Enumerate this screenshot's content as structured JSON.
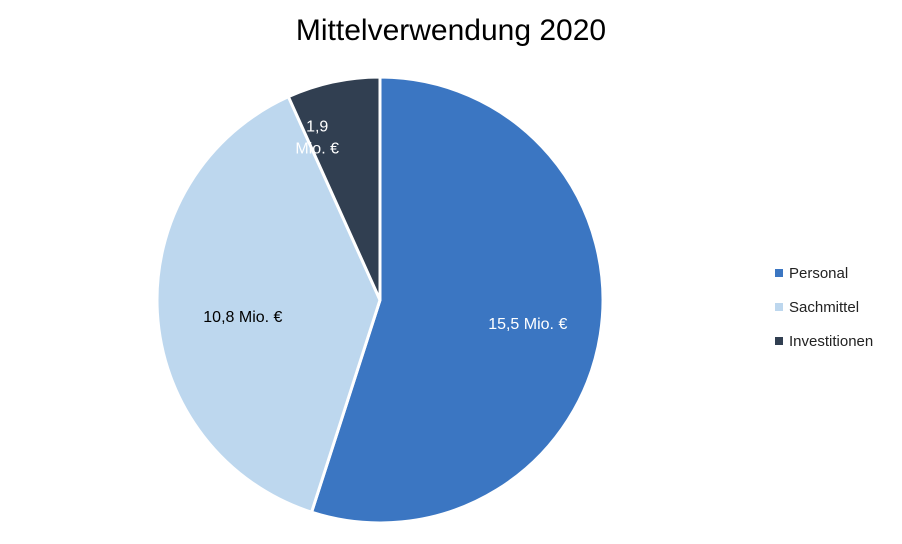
{
  "chart_data": {
    "type": "pie",
    "title": "Mittelverwendung 2020",
    "series": [
      {
        "name": "Personal",
        "value": 15.5,
        "label": "15,5 Mio. €",
        "color": "#3b76c2",
        "label_color": "#ffffff"
      },
      {
        "name": "Sachmittel",
        "value": 10.8,
        "label": "10,8 Mio. €",
        "color": "#bdd7ee",
        "label_color": "#000000"
      },
      {
        "name": "Investitionen",
        "value": 1.9,
        "label": "1,9 Mio. €",
        "label_lines": [
          "1,9",
          "Mio. €"
        ],
        "color": "#313f51",
        "label_color": "#ffffff"
      }
    ],
    "legend_position": "right"
  }
}
